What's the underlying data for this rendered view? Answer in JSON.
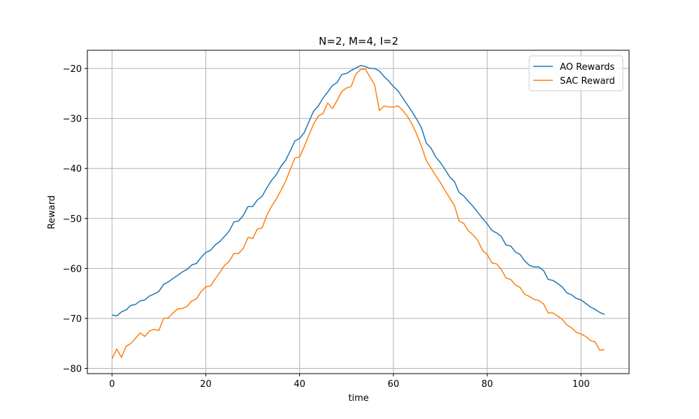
{
  "chart_data": {
    "type": "line",
    "title": "N=2, M=4, I=2",
    "xlabel": "time",
    "ylabel": "Reward",
    "x": [
      0,
      1,
      2,
      3,
      4,
      5,
      6,
      7,
      8,
      9,
      10,
      11,
      12,
      13,
      14,
      15,
      16,
      17,
      18,
      19,
      20,
      21,
      22,
      23,
      24,
      25,
      26,
      27,
      28,
      29,
      30,
      31,
      32,
      33,
      34,
      35,
      36,
      37,
      38,
      39,
      40,
      41,
      42,
      43,
      44,
      45,
      46,
      47,
      48,
      49,
      50,
      51,
      52,
      53,
      54,
      55,
      56,
      57,
      58,
      59,
      60,
      61,
      62,
      63,
      64,
      65,
      66,
      67,
      68,
      69,
      70,
      71,
      72,
      73,
      74,
      75,
      76,
      77,
      78,
      79,
      80,
      81,
      82,
      83,
      84,
      85,
      86,
      87,
      88,
      89,
      90,
      91,
      92,
      93,
      94,
      95,
      96,
      97,
      98,
      99,
      100,
      101,
      102,
      103,
      104,
      105
    ],
    "series": [
      {
        "name": "AO Rewards",
        "color": "#1f77b4",
        "values": [
          -69.3,
          -69.5,
          -68.7,
          -68.3,
          -67.4,
          -67.2,
          -66.5,
          -66.3,
          -65.5,
          -65.1,
          -64.6,
          -63.2,
          -62.7,
          -62.0,
          -61.4,
          -60.7,
          -60.2,
          -59.3,
          -59.0,
          -57.8,
          -56.8,
          -56.4,
          -55.3,
          -54.6,
          -53.6,
          -52.5,
          -50.7,
          -50.5,
          -49.4,
          -47.6,
          -47.6,
          -46.3,
          -45.6,
          -43.9,
          -42.4,
          -41.3,
          -39.6,
          -38.4,
          -36.5,
          -34.5,
          -34.0,
          -32.8,
          -30.6,
          -28.5,
          -27.5,
          -25.9,
          -24.7,
          -23.4,
          -22.8,
          -21.2,
          -21.0,
          -20.4,
          -19.9,
          -19.4,
          -19.6,
          -20.0,
          -20.0,
          -20.5,
          -21.6,
          -22.5,
          -23.6,
          -24.5,
          -25.9,
          -27.3,
          -28.7,
          -30.2,
          -31.9,
          -34.9,
          -35.9,
          -37.7,
          -38.8,
          -40.2,
          -41.7,
          -42.6,
          -44.8,
          -45.5,
          -46.6,
          -47.6,
          -48.8,
          -50.0,
          -51.1,
          -52.4,
          -52.9,
          -53.6,
          -55.3,
          -55.5,
          -56.7,
          -57.2,
          -58.5,
          -59.4,
          -59.7,
          -59.7,
          -60.4,
          -62.2,
          -62.4,
          -63.0,
          -63.7,
          -64.9,
          -65.3,
          -66.0,
          -66.3,
          -67.0,
          -67.7,
          -68.2,
          -68.8,
          -69.2
        ]
      },
      {
        "name": "SAC Reward",
        "color": "#ff7f0e",
        "values": [
          -78.1,
          -76.1,
          -77.8,
          -75.6,
          -75.0,
          -74.0,
          -72.9,
          -73.6,
          -72.5,
          -72.2,
          -72.4,
          -70.0,
          -69.9,
          -68.9,
          -68.1,
          -68.0,
          -67.6,
          -66.5,
          -66.1,
          -64.6,
          -63.7,
          -63.5,
          -62.1,
          -60.8,
          -59.4,
          -58.6,
          -57.0,
          -57.0,
          -56.0,
          -53.8,
          -54.0,
          -52.1,
          -51.9,
          -49.4,
          -47.6,
          -46.2,
          -44.4,
          -42.6,
          -40.2,
          -37.9,
          -37.7,
          -35.6,
          -33.3,
          -31.1,
          -29.5,
          -29.0,
          -26.9,
          -28.0,
          -26.4,
          -24.6,
          -23.9,
          -23.6,
          -21.1,
          -20.2,
          -20.1,
          -21.7,
          -23.3,
          -28.4,
          -27.5,
          -27.7,
          -27.7,
          -27.5,
          -28.4,
          -29.6,
          -31.2,
          -33.2,
          -35.6,
          -38.4,
          -39.9,
          -41.4,
          -42.8,
          -44.4,
          -45.9,
          -47.4,
          -50.5,
          -51.0,
          -52.5,
          -53.3,
          -54.4,
          -56.4,
          -57.2,
          -58.9,
          -59.1,
          -60.2,
          -61.9,
          -62.2,
          -63.3,
          -63.8,
          -65.2,
          -65.6,
          -66.2,
          -66.4,
          -67.1,
          -68.9,
          -68.9,
          -69.5,
          -70.2,
          -71.3,
          -71.9,
          -72.8,
          -73.1,
          -73.6,
          -74.4,
          -74.7,
          -76.4,
          -76.2
        ]
      }
    ],
    "xlim": [
      -5.25,
      110.25
    ],
    "xticks": [
      0,
      20,
      40,
      60,
      80,
      100
    ],
    "ylim": [
      -81.04,
      -16.36
    ],
    "yticks": [
      {
        "value": -80,
        "label": "−80"
      },
      {
        "value": -70,
        "label": "−70"
      },
      {
        "value": -60,
        "label": "−60"
      },
      {
        "value": -50,
        "label": "−50"
      },
      {
        "value": -40,
        "label": "−40"
      },
      {
        "value": -30,
        "label": "−30"
      },
      {
        "value": -20,
        "label": "−20"
      }
    ],
    "grid": true,
    "legend": "upper-right"
  }
}
